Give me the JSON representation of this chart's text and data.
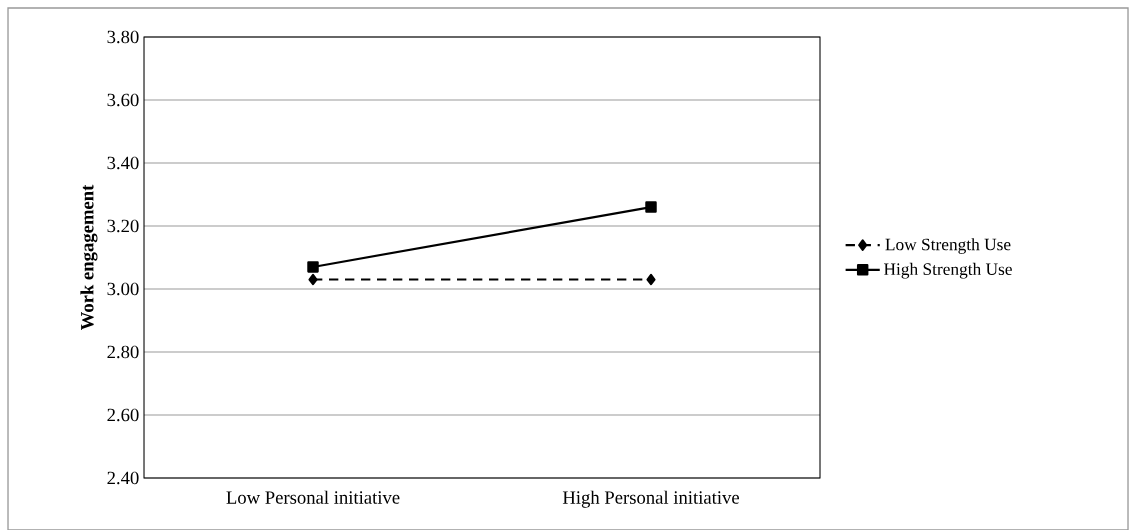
{
  "chart_data": {
    "type": "line",
    "ylabel": "Work engagement",
    "categories": [
      "Low Personal initiative",
      "High  Personal initiative"
    ],
    "series": [
      {
        "name": "Low Strength Use",
        "color": "#000000",
        "values": [
          3.03,
          3.03
        ],
        "marker": "diamond",
        "line_style": "dashed"
      },
      {
        "name": "High Strength Use",
        "color": "#000000",
        "values": [
          3.07,
          3.26
        ],
        "marker": "square",
        "line_style": "solid"
      }
    ],
    "ylim": [
      2.4,
      3.8
    ],
    "yticks": [
      {
        "value": 2.4,
        "label": "2.40"
      },
      {
        "value": 2.6,
        "label": "2.60"
      },
      {
        "value": 2.8,
        "label": "2.80"
      },
      {
        "value": 3.0,
        "label": "3.00"
      },
      {
        "value": 3.2,
        "label": "3.20"
      },
      {
        "value": 3.4,
        "label": "3.40"
      },
      {
        "value": 3.6,
        "label": "3.60"
      },
      {
        "value": 3.8,
        "label": "3.80"
      }
    ],
    "grid": "y",
    "legend": "right"
  }
}
